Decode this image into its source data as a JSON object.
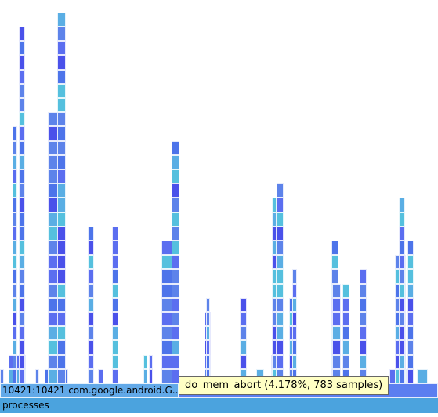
{
  "flamegraph": {
    "process_label": "10421:10421 com.google.android.G...",
    "root_label": "processes",
    "tooltip": "do_mem_abort (4.178%, 783 samples)",
    "colors": [
      "#5b6ef0",
      "#4d74ea",
      "#5d83ea",
      "#5aaee4",
      "#55c0de",
      "#4a51ea"
    ]
  }
}
